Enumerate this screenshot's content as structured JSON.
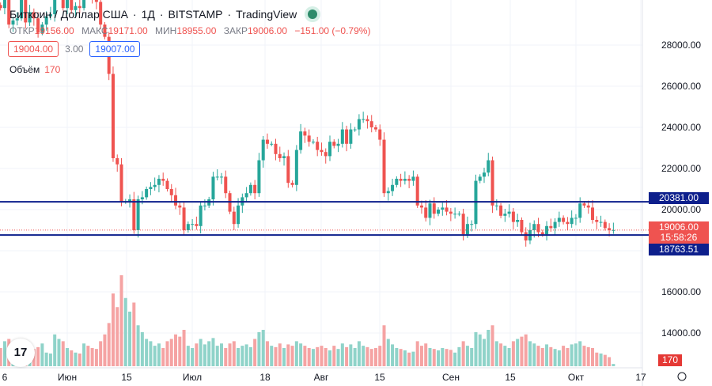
{
  "header": {
    "title": "Биткоин / Доллар США",
    "interval": "1Д",
    "exchange": "BITSTAMP",
    "source": "TradingView",
    "open_label": "ОТКР",
    "open": "19156.00",
    "high_label": "МАКС",
    "high": "19171.00",
    "low_label": "МИН",
    "low": "18955.00",
    "close_label": "ЗАКР",
    "close": "19006.00",
    "change": "−151.00 (−0.79%)",
    "bid": "19004.00",
    "spread": "3.00",
    "ask": "19007.00",
    "volume_label": "Объём",
    "volume": "170"
  },
  "price_tags": {
    "upper_line": "20381.00",
    "current": "19006.00",
    "countdown": "15:58:26",
    "lower_line": "18763.51",
    "volume": "170"
  },
  "colors": {
    "up": "#26a69a",
    "down": "#ef5350",
    "line": "#0d1f8c",
    "vol_up": "#8fd3c9",
    "vol_down": "#f5a3a3"
  },
  "chart_data": {
    "type": "candlestick",
    "start_date": "2022-05-16",
    "closes": [
      29800,
      30400,
      29000,
      29200,
      29300,
      30200,
      29100,
      29600,
      29300,
      28600,
      29000,
      29400,
      29500,
      31700,
      31800,
      29800,
      30400,
      29700,
      29900,
      29800,
      31300,
      31100,
      30200,
      30100,
      29000,
      28400,
      26600,
      22500,
      22200,
      20400,
      20400,
      20500,
      19000,
      20500,
      20600,
      21000,
      21100,
      21200,
      21500,
      21400,
      21000,
      20700,
      20200,
      20100,
      19000,
      19300,
      19300,
      19200,
      20200,
      20200,
      20500,
      21600,
      21600,
      21600,
      20800,
      19900,
      19300,
      20200,
      20600,
      20800,
      21200,
      20800,
      22400,
      23400,
      23200,
      23200,
      22700,
      22500,
      22600,
      21300,
      21200,
      22900,
      23800,
      23600,
      23300,
      23300,
      22900,
      22800,
      22600,
      23300,
      23100,
      23200,
      23900,
      23200,
      23900,
      23900,
      24400,
      24400,
      24300,
      24000,
      23900,
      23400,
      20800,
      20900,
      21200,
      21500,
      21400,
      21500,
      21400,
      21600,
      20200,
      20100,
      19600,
      20300,
      19800,
      20000,
      20100,
      19900,
      19800,
      19800,
      19800,
      18800,
      19300,
      19300,
      21400,
      21600,
      21800,
      22400,
      20200,
      20200,
      19700,
      19800,
      19900,
      19400,
      19500,
      18900,
      18500,
      19000,
      19300,
      18900,
      18800,
      19200,
      19100,
      19400,
      19600,
      19400,
      19300,
      19600,
      19600,
      20300,
      20200,
      20100,
      19500,
      19400,
      19400,
      19100,
      19000,
      19006
    ],
    "volumes": [
      40,
      55,
      60,
      35,
      30,
      25,
      45,
      40,
      38,
      42,
      50,
      30,
      28,
      70,
      60,
      55,
      40,
      35,
      30,
      28,
      50,
      45,
      40,
      38,
      55,
      70,
      95,
      160,
      130,
      200,
      150,
      120,
      140,
      90,
      75,
      60,
      55,
      45,
      50,
      40,
      55,
      60,
      70,
      65,
      80,
      45,
      40,
      50,
      60,
      48,
      55,
      62,
      45,
      50,
      40,
      50,
      55,
      40,
      45,
      48,
      42,
      60,
      75,
      80,
      55,
      45,
      42,
      50,
      40,
      48,
      45,
      55,
      50,
      45,
      40,
      38,
      42,
      45,
      40,
      35,
      45,
      38,
      50,
      42,
      48,
      40,
      55,
      45,
      42,
      38,
      40,
      45,
      90,
      60,
      48,
      40,
      38,
      35,
      30,
      32,
      55,
      45,
      50,
      40,
      38,
      35,
      40,
      38,
      36,
      30,
      42,
      55,
      45,
      40,
      75,
      70,
      60,
      80,
      90,
      55,
      50,
      45,
      40,
      55,
      60,
      65,
      70,
      55,
      50,
      45,
      40,
      48,
      42,
      38,
      35,
      45,
      40,
      48,
      50,
      55,
      45,
      42,
      40,
      30,
      28,
      25,
      20,
      5
    ],
    "price_ylim": [
      12000,
      30190
    ],
    "y_ticks": [
      "28000.00",
      "26000.00",
      "24000.00",
      "22000.00",
      "20000.00",
      "16000.00",
      "14000.00"
    ],
    "x_ticks": [
      "6",
      "Июн",
      "15",
      "Июл",
      "18",
      "Авг",
      "15",
      "Сен",
      "15",
      "Окт",
      "17"
    ],
    "hlines": [
      20381,
      18763.51
    ],
    "current_price": 19006
  }
}
